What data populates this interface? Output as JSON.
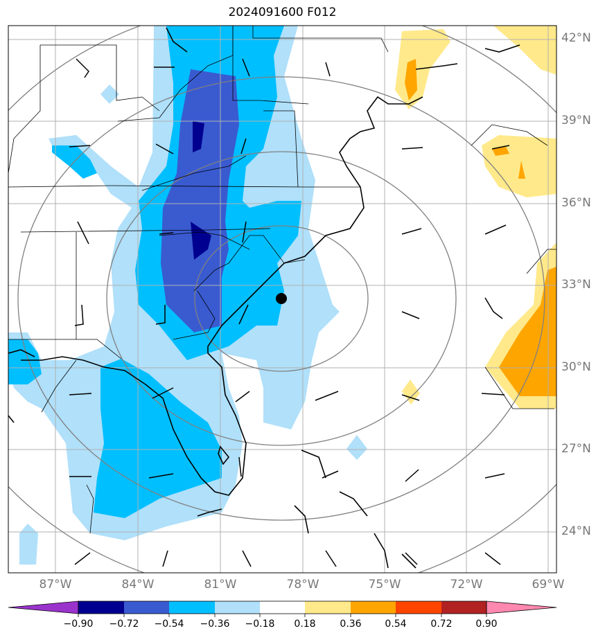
{
  "title": "2024091600 F012",
  "lat_labels": [
    "42°N",
    "39°N",
    "36°N",
    "33°N",
    "30°N",
    "27°N",
    "24°N"
  ],
  "lon_labels": [
    "87°W",
    "84°W",
    "81°W",
    "78°W",
    "75°W",
    "72°W",
    "69°W"
  ],
  "colorbar": {
    "ticks": [
      "−0.90",
      "−0.72",
      "−0.54",
      "−0.36",
      "−0.18",
      "0.18",
      "0.36",
      "0.54",
      "0.72",
      "0.90"
    ],
    "colors": [
      "#9933cc",
      "#000090",
      "#3a5bd0",
      "#00bfff",
      "#b0e0fa",
      "#ffffff",
      "#ffe98a",
      "#ffa500",
      "#ff4500",
      "#b22222",
      "#ff88b0"
    ]
  },
  "colors": {
    "land_line": "#000000",
    "grid": "#b0b0b0",
    "range_ring": "#808080",
    "marker": "#000000"
  }
}
